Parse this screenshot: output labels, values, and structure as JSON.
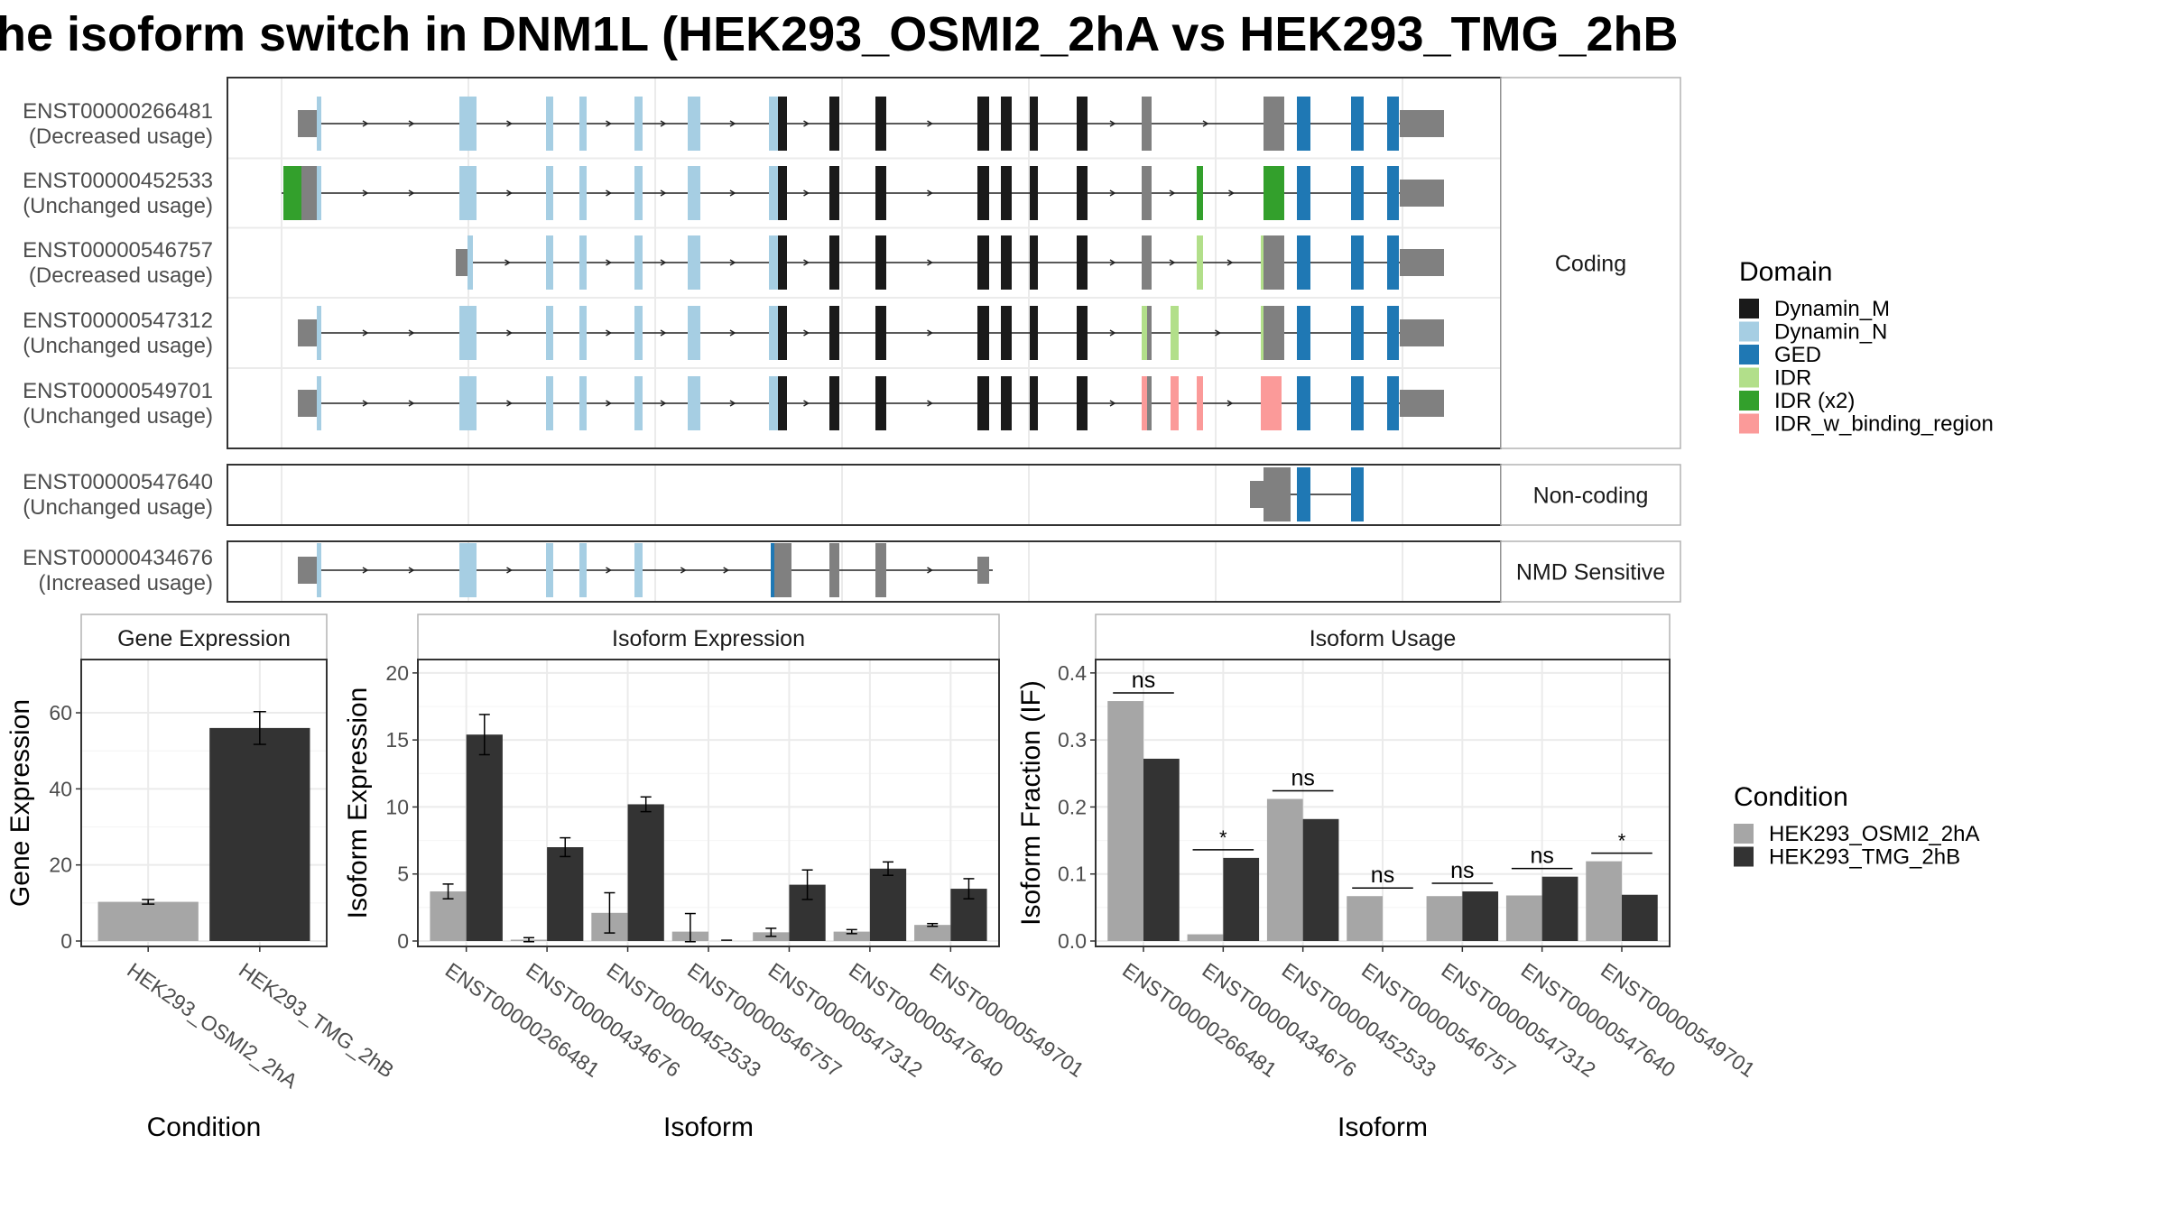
{
  "title": "he isoform switch in DNM1L (HEK293_OSMI2_2hA vs HEK293_TMG_2hB",
  "structure": {
    "groups": [
      {
        "label": "Coding",
        "transcripts": [
          {
            "id": "ENST00000266481",
            "usage": "(Decreased usage)"
          },
          {
            "id": "ENST00000452533",
            "usage": "(Unchanged usage)"
          },
          {
            "id": "ENST00000546757",
            "usage": "(Decreased usage)"
          },
          {
            "id": "ENST00000547312",
            "usage": "(Unchanged usage)"
          },
          {
            "id": "ENST00000549701",
            "usage": "(Unchanged usage)"
          }
        ]
      },
      {
        "label": "Non-coding",
        "transcripts": [
          {
            "id": "ENST00000547640",
            "usage": "(Unchanged usage)"
          }
        ]
      },
      {
        "label": "NMD Sensitive",
        "transcripts": [
          {
            "id": "ENST00000434676",
            "usage": "(Increased usage)"
          }
        ]
      }
    ]
  },
  "legend_domain": {
    "title": "Domain",
    "items": [
      {
        "label": "Dynamin_M",
        "color": "#1a1a1a"
      },
      {
        "label": "Dynamin_N",
        "color": "#a6cee3"
      },
      {
        "label": "GED",
        "color": "#1f78b4"
      },
      {
        "label": "IDR",
        "color": "#b2df8a"
      },
      {
        "label": "IDR (x2)",
        "color": "#33a02c"
      },
      {
        "label": "IDR_w_binding_region",
        "color": "#fb9a99"
      }
    ]
  },
  "legend_condition": {
    "title": "Condition",
    "items": [
      {
        "label": "HEK293_OSMI2_2hA",
        "color": "#a6a6a6"
      },
      {
        "label": "HEK293_TMG_2hB",
        "color": "#333333"
      }
    ]
  },
  "chart_data": [
    {
      "type": "bar",
      "panel_title": "Gene Expression",
      "xlabel": "Condition",
      "ylabel": "Gene Expression",
      "categories": [
        "HEK293_OSMI2_2hA",
        "HEK293_TMG_2hB"
      ],
      "values": [
        10.3,
        56.0
      ],
      "errors": [
        0.6,
        4.3
      ],
      "ylim": [
        0,
        74
      ],
      "yticks": [
        0,
        20,
        40,
        60
      ],
      "grid": true
    },
    {
      "type": "bar",
      "panel_title": "Isoform Expression",
      "xlabel": "Isoform",
      "ylabel": "Isoform Expression",
      "categories": [
        "ENST00000266481",
        "ENST00000434676",
        "ENST00000452533",
        "ENST00000546757",
        "ENST00000547312",
        "ENST00000547640",
        "ENST00000549701"
      ],
      "series": [
        {
          "name": "HEK293_OSMI2_2hA",
          "values": [
            3.7,
            0.1,
            2.1,
            0.7,
            0.65,
            0.7,
            1.2
          ],
          "errors": [
            0.55,
            0.15,
            1.5,
            1.35,
            0.3,
            0.15,
            0.1
          ]
        },
        {
          "name": "HEK293_TMG_2hB",
          "values": [
            15.4,
            7.0,
            10.2,
            0.0,
            4.2,
            5.4,
            3.9
          ],
          "errors": [
            1.5,
            0.7,
            0.55,
            0.0,
            1.1,
            0.5,
            0.75
          ]
        }
      ],
      "ylim": [
        0,
        21
      ],
      "yticks": [
        0,
        5,
        10,
        15,
        20
      ],
      "grid": true
    },
    {
      "type": "bar",
      "panel_title": "Isoform Usage",
      "xlabel": "Isoform",
      "ylabel": "Isoform Fraction (IF)",
      "categories": [
        "ENST00000266481",
        "ENST00000434676",
        "ENST00000452533",
        "ENST00000546757",
        "ENST00000547312",
        "ENST00000547640",
        "ENST00000549701"
      ],
      "series": [
        {
          "name": "HEK293_OSMI2_2hA",
          "values": [
            0.358,
            0.01,
            0.212,
            0.067,
            0.067,
            0.068,
            0.119
          ]
        },
        {
          "name": "HEK293_TMG_2hB",
          "values": [
            0.272,
            0.124,
            0.182,
            0.0,
            0.074,
            0.096,
            0.069
          ]
        }
      ],
      "significance": [
        "ns",
        "*",
        "ns",
        "ns",
        "ns",
        "ns",
        "*"
      ],
      "ylim": [
        0,
        0.42
      ],
      "yticks": [
        0.0,
        0.1,
        0.2,
        0.3,
        0.4
      ],
      "ytick_labels": [
        "0.0",
        "0.1",
        "0.2",
        "0.3",
        "0.4"
      ],
      "grid": true
    }
  ]
}
